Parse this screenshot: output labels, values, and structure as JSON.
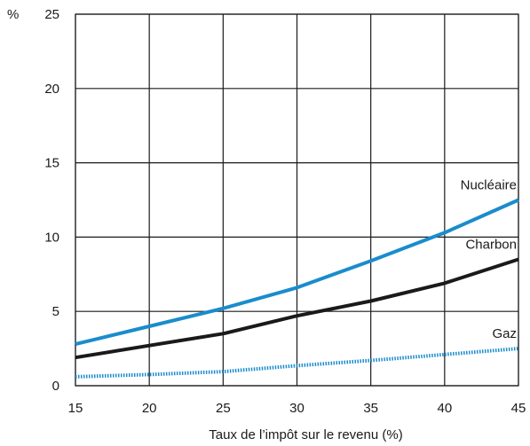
{
  "chart_data": {
    "type": "line",
    "title": "",
    "xlabel": "Taux de l’impôt sur le revenu (%)",
    "ylabel": "%",
    "xlim": [
      15,
      45
    ],
    "ylim": [
      0,
      25
    ],
    "x_ticks": [
      15,
      20,
      25,
      30,
      35,
      40,
      45
    ],
    "y_ticks": [
      0,
      5,
      10,
      15,
      20,
      25
    ],
    "grid": true,
    "legend": "inline labels at line ends",
    "x": [
      15,
      20,
      25,
      30,
      35,
      40,
      45
    ],
    "series": [
      {
        "name": "Nucléaire",
        "values": [
          2.8,
          4.0,
          5.2,
          6.6,
          8.4,
          10.3,
          12.5
        ],
        "color": "#1a8ccc",
        "style": "solid"
      },
      {
        "name": "Charbon",
        "values": [
          1.9,
          2.7,
          3.5,
          4.7,
          5.7,
          6.9,
          8.5
        ],
        "color": "#1a1a1a",
        "style": "solid"
      },
      {
        "name": "Gaz",
        "values": [
          0.6,
          0.75,
          0.95,
          1.35,
          1.7,
          2.1,
          2.5
        ],
        "color": "#1a8ccc",
        "style": "dotted"
      }
    ]
  }
}
